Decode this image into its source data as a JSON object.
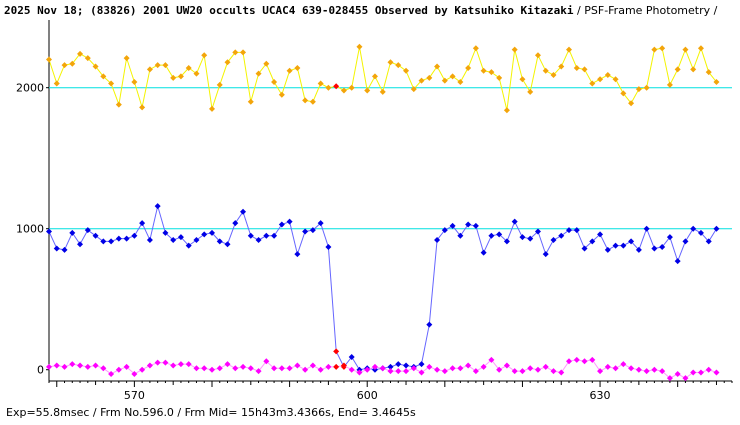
{
  "chart_data": {
    "type": "scatter",
    "title_bold": "2025 Nov 18; (83826) 2001 UW20 occults UCAC4 639-028455 Observed by Katsuhiko Kitazaki",
    "title_normal": " / PSF-Frame Photometry /",
    "footer": "Exp=55.8msec / Frm No.596.0 / Frm Mid= 15h43m3.4366s,  End= 3.4645s",
    "x_range": [
      559,
      647
    ],
    "y_range": [
      -80,
      2480
    ],
    "x_ticks": [
      570,
      600,
      630
    ],
    "y_ticks": [
      0,
      1000,
      2000
    ],
    "reference_lines": [
      2000,
      1000
    ],
    "grid": false,
    "colors": {
      "upper_line": "#f4f400",
      "upper_marker": "#f3a50a",
      "target_line": "#6666ff",
      "target_marker": "#0000e6",
      "lower_line": "#ff99ff",
      "lower_marker": "#ff00ff",
      "highlight": "#ff0000",
      "reference": "#00e0e0"
    },
    "x_start": 559,
    "series": [
      {
        "role": "upper",
        "highlight_index": [
          37
        ],
        "values": [
          2200,
          2030,
          2160,
          2170,
          2240,
          2210,
          2150,
          2080,
          2030,
          1880,
          2210,
          2040,
          1860,
          2130,
          2160,
          2160,
          2070,
          2080,
          2140,
          2100,
          2230,
          1850,
          2020,
          2180,
          2250,
          2250,
          1900,
          2100,
          2170,
          2040,
          1950,
          2120,
          2140,
          1910,
          1900,
          2030,
          2000,
          2010,
          1980,
          2000,
          2290,
          1980,
          2080,
          1970,
          2180,
          2160,
          2120,
          1990,
          2050,
          2070,
          2150,
          2050,
          2080,
          2040,
          2140,
          2280,
          2120,
          2110,
          2070,
          1840,
          2270,
          2060,
          1970,
          2230,
          2120,
          2090,
          2150,
          2270,
          2140,
          2130,
          2030,
          2060,
          2090,
          2060,
          1960,
          1890,
          1990,
          2000,
          2270,
          2280,
          2020,
          2130,
          2270,
          2130,
          2280,
          2110,
          2040
        ]
      },
      {
        "role": "target",
        "highlight_index": [
          37,
          38
        ],
        "values": [
          980,
          860,
          850,
          970,
          890,
          990,
          950,
          910,
          910,
          930,
          930,
          950,
          1040,
          920,
          1160,
          970,
          920,
          940,
          880,
          920,
          960,
          970,
          910,
          890,
          1040,
          1120,
          950,
          920,
          950,
          950,
          1030,
          1050,
          820,
          980,
          990,
          1040,
          870,
          130,
          20,
          90,
          0,
          10,
          0,
          10,
          20,
          40,
          30,
          20,
          40,
          320,
          920,
          990,
          1020,
          950,
          1030,
          1020,
          830,
          950,
          960,
          910,
          1050,
          940,
          930,
          980,
          820,
          920,
          950,
          990,
          990,
          860,
          910,
          960,
          850,
          880,
          880,
          910,
          850,
          1000,
          860,
          870,
          940,
          770,
          910,
          1000,
          970,
          910,
          1000
        ]
      },
      {
        "role": "lower",
        "highlight_index": [
          37,
          38
        ],
        "values": [
          20,
          30,
          20,
          40,
          30,
          20,
          30,
          10,
          -30,
          0,
          20,
          -30,
          0,
          30,
          50,
          50,
          30,
          40,
          40,
          10,
          10,
          0,
          10,
          40,
          10,
          20,
          10,
          -10,
          60,
          10,
          10,
          10,
          30,
          0,
          30,
          0,
          20,
          20,
          30,
          0,
          -20,
          0,
          20,
          10,
          -10,
          -10,
          -10,
          10,
          -20,
          20,
          0,
          -10,
          10,
          10,
          30,
          -10,
          20,
          70,
          0,
          30,
          -10,
          -10,
          10,
          0,
          20,
          -10,
          -20,
          60,
          70,
          60,
          70,
          -10,
          20,
          10,
          40,
          10,
          0,
          -10,
          0,
          -10,
          -60,
          -30,
          -60,
          -20,
          -20,
          0,
          -20
        ]
      }
    ]
  }
}
